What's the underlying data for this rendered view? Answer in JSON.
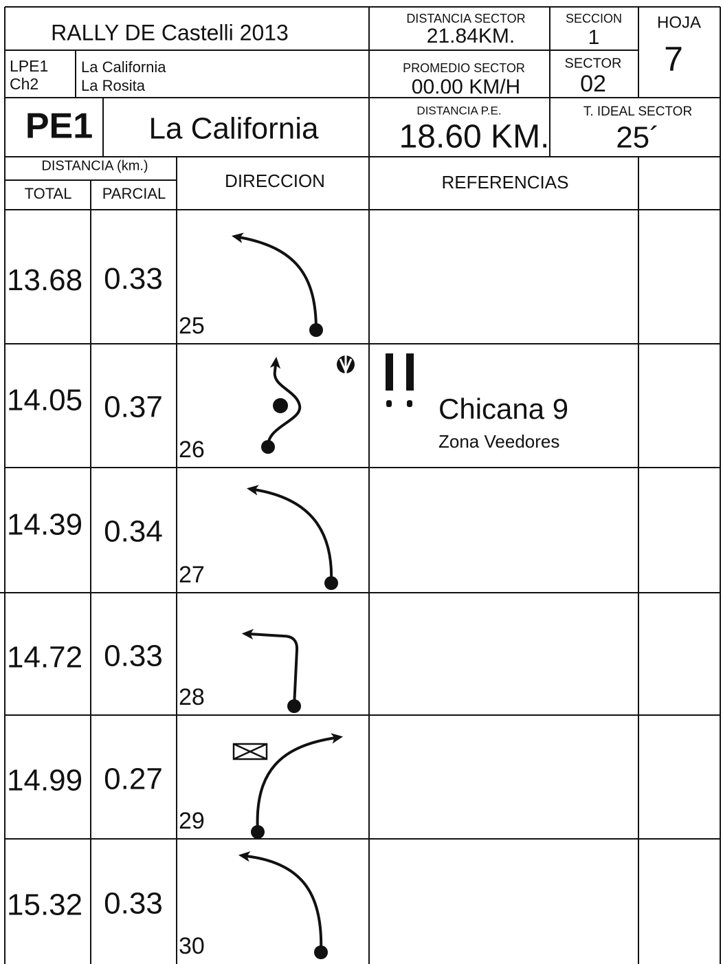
{
  "header": {
    "title": "RALLY DE Castelli 2013",
    "stage_codes": [
      "LPE1",
      "Ch2"
    ],
    "stage_names": [
      "La California",
      "La Rosita"
    ],
    "stage_id": "PE1",
    "stage_name": "La California",
    "sector_distance": {
      "label": "DISTANCIA SECTOR",
      "value": "21.84KM."
    },
    "section": {
      "label": "SECCION",
      "value": "1"
    },
    "sheet": {
      "label": "HOJA",
      "value": "7"
    },
    "sector_average": {
      "label": "PROMEDIO SECTOR",
      "value": "00.00 KM/H"
    },
    "sector": {
      "label": "SECTOR",
      "value": "02"
    },
    "stage_distance": {
      "label": "DISTANCIA P.E.",
      "value": "18.60 KM."
    },
    "ideal_time": {
      "label": "T. IDEAL SECTOR",
      "value": "25´"
    }
  },
  "table": {
    "group_header": "DISTANCIA (km.)",
    "columns": [
      "TOTAL",
      "PARCIAL",
      "DIRECCION",
      "REFERENCIAS"
    ],
    "rows": [
      {
        "total": "13.68",
        "partial": "0.33",
        "number": "25"
      },
      {
        "total": "14.05",
        "partial": "0.37",
        "number": "26",
        "reference": "Chicana 9",
        "note": "Zona Veedores"
      },
      {
        "total": "14.39",
        "partial": "0.34",
        "number": "27"
      },
      {
        "total": "14.72",
        "partial": "0.33",
        "number": "28"
      },
      {
        "total": "14.99",
        "partial": "0.27",
        "number": "29"
      },
      {
        "total": "15.32",
        "partial": "0.33",
        "number": "30"
      }
    ]
  }
}
